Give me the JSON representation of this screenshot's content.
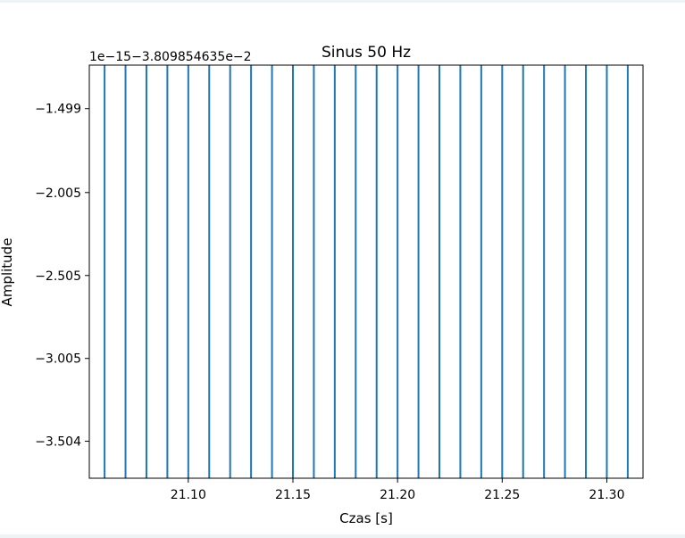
{
  "chart_data": {
    "type": "line",
    "title": "Sinus 50 Hz",
    "xlabel": "Czas [s]",
    "ylabel": "Amplitude",
    "offset_text": "1e−15−3.809854635e−2",
    "xlim": [
      21.0527,
      21.3173
    ],
    "ylim": [
      -3.727,
      -1.237
    ],
    "xticks": [
      {
        "value": 21.1,
        "label": "21.10"
      },
      {
        "value": 21.15,
        "label": "21.15"
      },
      {
        "value": 21.2,
        "label": "21.20"
      },
      {
        "value": 21.25,
        "label": "21.25"
      },
      {
        "value": 21.3,
        "label": "21.30"
      }
    ],
    "yticks": [
      {
        "value": -1.499,
        "label": "−1.499"
      },
      {
        "value": -2.005,
        "label": "−2.005"
      },
      {
        "value": -2.505,
        "label": "−2.505"
      },
      {
        "value": -3.005,
        "label": "−3.005"
      },
      {
        "value": -3.504,
        "label": "−3.504"
      }
    ],
    "series_color": "#1f77b4",
    "vertical_segments_x": [
      21.06,
      21.07,
      21.08,
      21.09,
      21.1,
      21.11,
      21.12,
      21.13,
      21.14,
      21.15,
      21.16,
      21.17,
      21.18,
      21.19,
      21.2,
      21.21,
      21.22,
      21.23,
      21.24,
      21.25,
      21.26,
      21.27,
      21.28,
      21.29,
      21.3,
      21.31
    ],
    "grid": false,
    "legend": "none"
  }
}
